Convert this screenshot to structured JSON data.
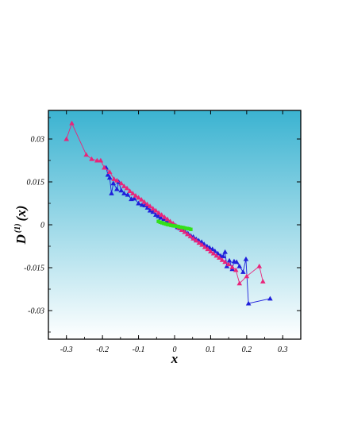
{
  "chart_data": {
    "type": "scatter",
    "title": "",
    "xlabel": "x",
    "ylabel": {
      "base": "D",
      "sup": "(1)",
      "arg": "(x)"
    },
    "xlim": [
      -0.35,
      0.35
    ],
    "ylim": [
      -0.04,
      0.04
    ],
    "xticks": [
      -0.3,
      -0.2,
      -0.1,
      0,
      0.1,
      0.2,
      0.3
    ],
    "xtick_labels": [
      "-0.3",
      "-0.2",
      "-0.1",
      "0",
      "0.1",
      "0.2",
      "0.3"
    ],
    "yticks": [
      0.03,
      0.015,
      0,
      -0.015,
      -0.03
    ],
    "ytick_labels": [
      "0.03",
      "0.015",
      "0",
      "-0.015",
      "-0.03"
    ],
    "grid": false,
    "legend": "none",
    "background": {
      "top": "#3bb3d1",
      "bottom": "#ffffff"
    },
    "series": [
      {
        "color": "#1f1fdb",
        "marker": "triangle",
        "points": [
          [
            -0.19,
            0.02
          ],
          [
            -0.185,
            0.0175
          ],
          [
            -0.18,
            0.0165
          ],
          [
            -0.175,
            0.011
          ],
          [
            -0.17,
            0.0145
          ],
          [
            -0.16,
            0.0125
          ],
          [
            -0.155,
            0.015
          ],
          [
            -0.148,
            0.012
          ],
          [
            -0.14,
            0.011
          ],
          [
            -0.13,
            0.0105
          ],
          [
            -0.12,
            0.009
          ],
          [
            -0.112,
            0.0092
          ],
          [
            -0.1,
            0.0075
          ],
          [
            -0.09,
            0.007
          ],
          [
            -0.082,
            0.0068
          ],
          [
            -0.075,
            0.006
          ],
          [
            -0.068,
            0.005
          ],
          [
            -0.06,
            0.0045
          ],
          [
            -0.052,
            0.0035
          ],
          [
            -0.045,
            0.003
          ],
          [
            -0.038,
            0.0025
          ],
          [
            -0.03,
            0.002
          ],
          [
            -0.022,
            0.0012
          ],
          [
            -0.015,
            0.0008
          ],
          [
            -0.008,
            0.0003
          ],
          [
            0.0,
            -0.0002
          ],
          [
            0.008,
            -0.0008
          ],
          [
            0.015,
            -0.0012
          ],
          [
            0.022,
            -0.0018
          ],
          [
            0.03,
            -0.0025
          ],
          [
            0.037,
            -0.003
          ],
          [
            0.045,
            -0.0038
          ],
          [
            0.052,
            -0.0042
          ],
          [
            0.06,
            -0.005
          ],
          [
            0.067,
            -0.0055
          ],
          [
            0.075,
            -0.006
          ],
          [
            0.082,
            -0.0068
          ],
          [
            0.09,
            -0.0075
          ],
          [
            0.097,
            -0.008
          ],
          [
            0.105,
            -0.0085
          ],
          [
            0.112,
            -0.0092
          ],
          [
            0.12,
            -0.01
          ],
          [
            0.128,
            -0.0108
          ],
          [
            0.135,
            -0.011
          ],
          [
            0.14,
            -0.0095
          ],
          [
            0.145,
            -0.0145
          ],
          [
            0.152,
            -0.0125
          ],
          [
            0.16,
            -0.0155
          ],
          [
            0.165,
            -0.0128
          ],
          [
            0.172,
            -0.013
          ],
          [
            0.18,
            -0.0145
          ],
          [
            0.19,
            -0.0165
          ],
          [
            0.198,
            -0.012
          ],
          [
            0.205,
            -0.0275
          ],
          [
            0.265,
            -0.0258
          ]
        ]
      },
      {
        "color": "#e8257a",
        "marker": "triangle",
        "points": [
          [
            -0.3,
            0.03
          ],
          [
            -0.285,
            0.0355
          ],
          [
            -0.245,
            0.0245
          ],
          [
            -0.23,
            0.023
          ],
          [
            -0.215,
            0.0225
          ],
          [
            -0.205,
            0.0225
          ],
          [
            -0.195,
            0.02
          ],
          [
            -0.18,
            0.0185
          ],
          [
            -0.168,
            0.016
          ],
          [
            -0.16,
            0.0155
          ],
          [
            -0.148,
            0.0145
          ],
          [
            -0.14,
            0.0135
          ],
          [
            -0.132,
            0.0128
          ],
          [
            -0.124,
            0.0118
          ],
          [
            -0.116,
            0.011
          ],
          [
            -0.108,
            0.0102
          ],
          [
            -0.1,
            0.0095
          ],
          [
            -0.092,
            0.0088
          ],
          [
            -0.084,
            0.008
          ],
          [
            -0.076,
            0.0072
          ],
          [
            -0.068,
            0.0065
          ],
          [
            -0.06,
            0.0057
          ],
          [
            -0.052,
            0.005
          ],
          [
            -0.044,
            0.0042
          ],
          [
            -0.036,
            0.0035
          ],
          [
            -0.028,
            0.0027
          ],
          [
            -0.02,
            0.002
          ],
          [
            -0.012,
            0.0012
          ],
          [
            -0.004,
            0.0005
          ],
          [
            0.004,
            -0.0003
          ],
          [
            0.012,
            -0.001
          ],
          [
            0.02,
            -0.0018
          ],
          [
            0.028,
            -0.0025
          ],
          [
            0.036,
            -0.0033
          ],
          [
            0.044,
            -0.004
          ],
          [
            0.052,
            -0.0048
          ],
          [
            0.06,
            -0.0055
          ],
          [
            0.068,
            -0.0063
          ],
          [
            0.076,
            -0.007
          ],
          [
            0.084,
            -0.0078
          ],
          [
            0.092,
            -0.0085
          ],
          [
            0.1,
            -0.0093
          ],
          [
            0.108,
            -0.01
          ],
          [
            0.116,
            -0.0108
          ],
          [
            0.124,
            -0.0115
          ],
          [
            0.132,
            -0.0123
          ],
          [
            0.14,
            -0.013
          ],
          [
            0.15,
            -0.0138
          ],
          [
            0.16,
            -0.0148
          ],
          [
            0.17,
            -0.0158
          ],
          [
            0.18,
            -0.0205
          ],
          [
            0.2,
            -0.018
          ],
          [
            0.235,
            -0.0145
          ],
          [
            0.245,
            -0.0198
          ]
        ]
      },
      {
        "color": "#33e01a",
        "marker": "square",
        "points": [
          [
            -0.045,
            0.0012
          ],
          [
            -0.04,
            0.0009
          ],
          [
            -0.035,
            0.0007
          ],
          [
            -0.03,
            0.0005
          ],
          [
            -0.025,
            0.0003
          ],
          [
            -0.02,
            0.0001
          ],
          [
            -0.015,
            0.0
          ],
          [
            -0.01,
            -0.0002
          ],
          [
            -0.005,
            -0.0003
          ],
          [
            0.0,
            -0.0004
          ],
          [
            0.005,
            -0.0005
          ],
          [
            0.01,
            -0.0006
          ],
          [
            0.015,
            -0.0008
          ],
          [
            0.02,
            -0.0009
          ],
          [
            0.025,
            -0.001
          ],
          [
            0.03,
            -0.0012
          ],
          [
            0.035,
            -0.0013
          ],
          [
            0.04,
            -0.0014
          ],
          [
            0.045,
            -0.0016
          ]
        ]
      }
    ]
  }
}
